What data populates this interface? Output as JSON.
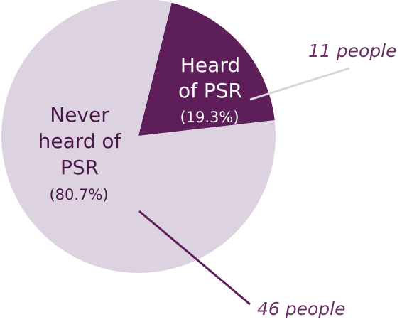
{
  "chart_data": {
    "type": "pie",
    "title": "",
    "slices": [
      {
        "label_lines": [
          "Heard",
          "of PSR"
        ],
        "percent_text": "(19.3%)",
        "value": 11,
        "percent": 19.3,
        "callout": "11 people",
        "color": "#5e1e5a"
      },
      {
        "label_lines": [
          "Never",
          "heard of",
          "PSR"
        ],
        "percent_text": "(80.7%)",
        "value": 46,
        "percent": 80.7,
        "callout": "46 people",
        "color": "#ddd3e0"
      }
    ],
    "colors": {
      "callout_text": "#6b2f68",
      "leader_light": "#ddd3e0",
      "leader_dark": "#5e1e5a"
    }
  }
}
